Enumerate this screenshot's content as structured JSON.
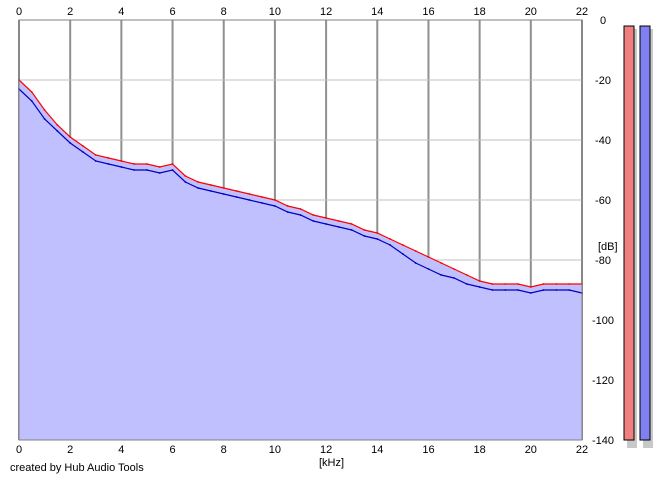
{
  "credit": "created by Hub Audio Tools",
  "chart_data": {
    "type": "area",
    "xlabel": "[kHz]",
    "ylabel": "[dB]",
    "xlim": [
      0,
      22
    ],
    "ylim": [
      -140,
      0
    ],
    "x_ticks": [
      0,
      2,
      4,
      6,
      8,
      10,
      12,
      14,
      16,
      18,
      20,
      22
    ],
    "y_ticks": [
      0,
      -20,
      -40,
      -60,
      -80,
      -100,
      -120,
      -140
    ],
    "grid": true,
    "x": [
      0,
      0.5,
      1,
      1.5,
      2,
      2.5,
      3,
      3.5,
      4,
      4.5,
      5,
      5.5,
      6,
      6.5,
      7,
      7.5,
      8,
      8.5,
      9,
      9.5,
      10,
      10.5,
      11,
      11.5,
      12,
      12.5,
      13,
      13.5,
      14,
      14.5,
      15,
      15.5,
      16,
      16.5,
      17,
      17.5,
      18,
      18.5,
      19,
      19.5,
      20,
      20.5,
      21,
      21.5,
      22
    ],
    "series": [
      {
        "color": "#ff0000",
        "values": [
          -20,
          -24,
          -30,
          -35,
          -39,
          -42,
          -45,
          -46,
          -47,
          -48,
          -48,
          -49,
          -48,
          -52,
          -54,
          -55,
          -56,
          -57,
          -58,
          -59,
          -60,
          -62,
          -63,
          -65,
          -66,
          -67,
          -68,
          -70,
          -71,
          -73,
          -75,
          -77,
          -79,
          -81,
          -83,
          -85,
          -87,
          -88,
          -88,
          -88,
          -89,
          -88,
          -88,
          -88,
          -88
        ]
      },
      {
        "color": "#0000c0",
        "values": [
          -23,
          -27,
          -33,
          -37,
          -41,
          -44,
          -47,
          -48,
          -49,
          -50,
          -50,
          -51,
          -50,
          -54,
          -56,
          -57,
          -58,
          -59,
          -60,
          -61,
          -62,
          -64,
          -65,
          -67,
          -68,
          -69,
          -70,
          -72,
          -73,
          -75,
          -78,
          -81,
          -83,
          -85,
          -86,
          -88,
          -89,
          -90,
          -90,
          -90,
          -91,
          -90,
          -90,
          -90,
          -91
        ]
      }
    ],
    "fill_color": "#c0c0ff",
    "meters": [
      {
        "color": "#f08080"
      },
      {
        "color": "#8080f0"
      }
    ]
  }
}
